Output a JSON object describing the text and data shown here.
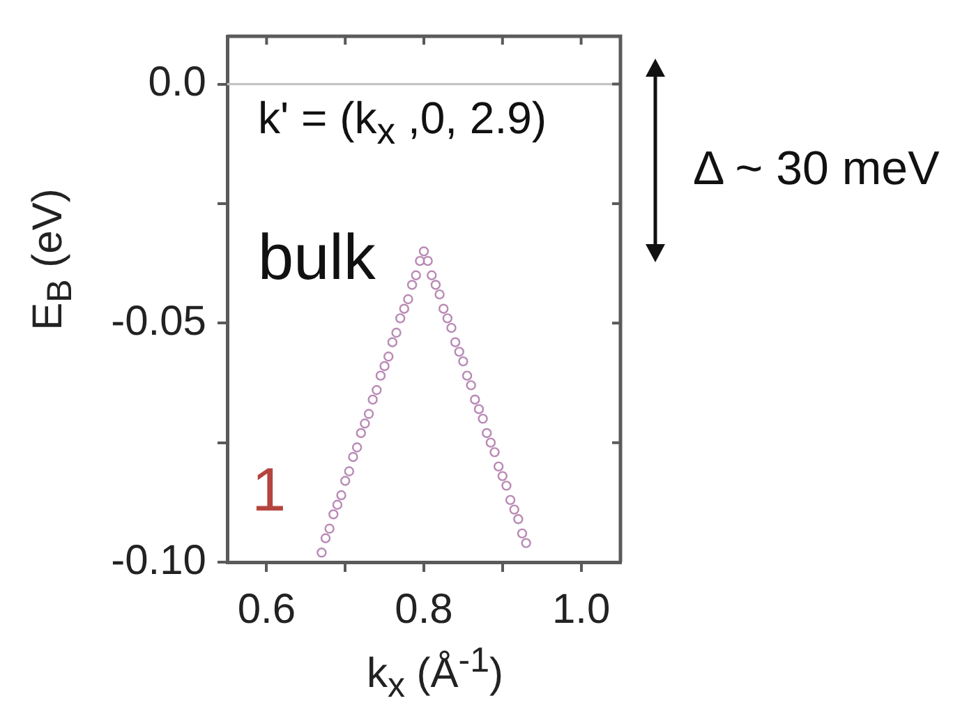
{
  "chart_data": {
    "type": "scatter",
    "xlabel": "k$_{x}$ (Å$^{-1}$)",
    "ylabel": "E$_{B}$ (eV)",
    "annotations": [
      "k' = (k$_{x}$ ,0, 2.9)",
      "Δ ~ 30 meV",
      "bulk"
    ],
    "x": [
      0.67,
      0.675,
      0.68,
      0.685,
      0.69,
      0.695,
      0.7,
      0.705,
      0.71,
      0.715,
      0.72,
      0.725,
      0.73,
      0.735,
      0.74,
      0.745,
      0.75,
      0.755,
      0.76,
      0.765,
      0.77,
      0.775,
      0.78,
      0.785,
      0.79,
      0.795,
      0.8,
      0.805,
      0.81,
      0.815,
      0.82,
      0.825,
      0.83,
      0.835,
      0.84,
      0.845,
      0.85,
      0.855,
      0.86,
      0.865,
      0.87,
      0.875,
      0.88,
      0.885,
      0.89,
      0.895,
      0.9,
      0.905,
      0.91,
      0.915,
      0.92,
      0.925,
      0.93
    ],
    "series": [
      {
        "name": "1",
        "color": "#b98ab5",
        "values": [
          -0.098,
          -0.095,
          -0.093,
          -0.09,
          -0.088,
          -0.086,
          -0.083,
          -0.081,
          -0.078,
          -0.076,
          -0.073,
          -0.071,
          -0.069,
          -0.066,
          -0.064,
          -0.061,
          -0.059,
          -0.057,
          -0.054,
          -0.052,
          -0.049,
          -0.047,
          -0.045,
          -0.042,
          -0.04,
          -0.037,
          -0.035,
          -0.037,
          -0.04,
          -0.042,
          -0.044,
          -0.047,
          -0.049,
          -0.051,
          -0.054,
          -0.056,
          -0.058,
          -0.061,
          -0.063,
          -0.066,
          -0.068,
          -0.07,
          -0.073,
          -0.075,
          -0.077,
          -0.08,
          -0.082,
          -0.084,
          -0.087,
          -0.089,
          -0.091,
          -0.094,
          -0.096
        ]
      }
    ],
    "xlim": [
      0.55,
      1.05
    ],
    "ylim": [
      -0.1,
      0.01
    ],
    "xticks": [
      {
        "value": 0.6,
        "label": "0.6"
      },
      {
        "value": 0.7,
        "label": null
      },
      {
        "value": 0.8,
        "label": "0.8"
      },
      {
        "value": 0.9,
        "label": null
      },
      {
        "value": 1.0,
        "label": "1.0"
      }
    ],
    "yticks": [
      {
        "value": -0.1,
        "label": "-0.10"
      },
      {
        "value": -0.075,
        "label": null
      },
      {
        "value": -0.05,
        "label": "-0.05"
      },
      {
        "value": -0.025,
        "label": null
      },
      {
        "value": 0,
        "label": "0.0"
      }
    ],
    "ref_lines": [
      {
        "axis": "y",
        "value": 0,
        "color": "#c4c4c4"
      }
    ],
    "grid": false,
    "legend": false,
    "marker": "circle"
  }
}
